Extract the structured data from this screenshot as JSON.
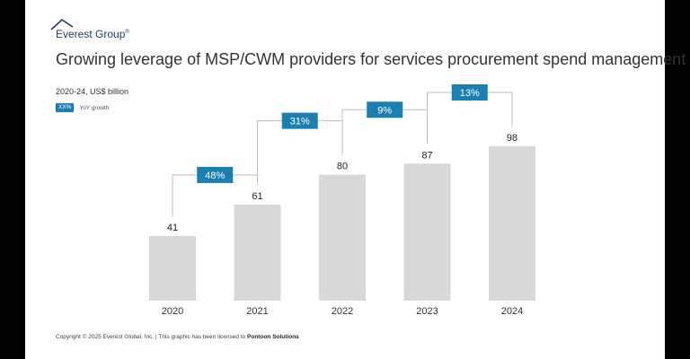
{
  "brand": {
    "name": "Everest Group",
    "mark": "®"
  },
  "title": "Growing leverage of MSP/CWM providers for services procurement spend management",
  "subtitle": "2020-24, US$ billion",
  "legend": {
    "box_label": "XX%",
    "text": "YoY growth"
  },
  "footer": {
    "text": "Copyright © 2025 Everest Global, Inc. | This graphic has been licensed to ",
    "licensee": "Pontoon Solutions"
  },
  "colors": {
    "bar": "#d9d9d9",
    "growth_box": "#1a7fb3",
    "connector": "#bfbfbf"
  },
  "chart_data": {
    "type": "bar",
    "title": "Growing leverage of MSP/CWM providers for services procurement spend management",
    "ylabel": "US$ billion",
    "categories": [
      "2020",
      "2021",
      "2022",
      "2023",
      "2024"
    ],
    "values": [
      41,
      61,
      80,
      87,
      98
    ],
    "growth_labels": [
      "48%",
      "31%",
      "9%",
      "13%"
    ],
    "ylim": [
      0,
      98
    ],
    "grid": false
  }
}
